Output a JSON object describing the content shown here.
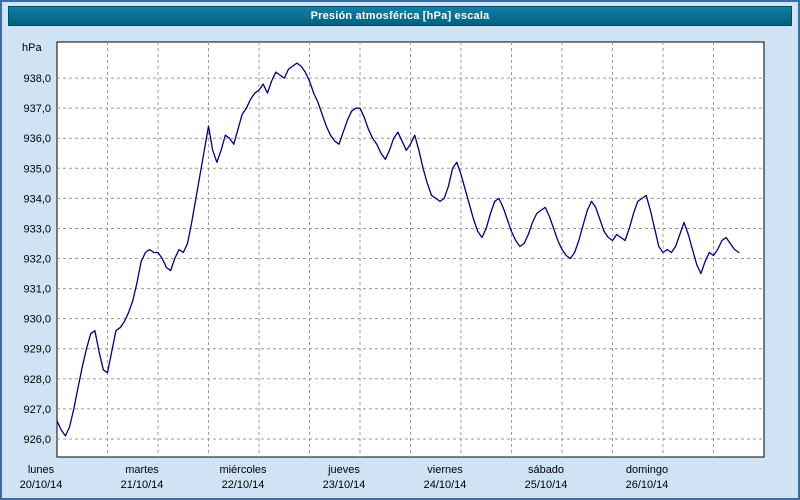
{
  "title": "Presión atmosférica [hPa] escala",
  "colors": {
    "window_bg": "#cfe3f5",
    "window_border": "#3a6ea5",
    "titlebar": "#0b6f93",
    "titlebar_text": "#ffffff",
    "plot_bg": "#ffffff",
    "plot_border": "#000000",
    "grid": "#9a9a9a",
    "line": "#000080",
    "text": "#000000"
  },
  "y_axis": {
    "unit_label": "hPa",
    "tick_labels": [
      "926,0",
      "927,0",
      "928,0",
      "929,0",
      "930,0",
      "931,0",
      "932,0",
      "933,0",
      "934,0",
      "935,0",
      "936,0",
      "937,0",
      "938,0"
    ]
  },
  "x_axis": {
    "days": [
      {
        "name": "lunes",
        "date": "20/10/14"
      },
      {
        "name": "martes",
        "date": "21/10/14"
      },
      {
        "name": "miércoles",
        "date": "22/10/14"
      },
      {
        "name": "jueves",
        "date": "23/10/14"
      },
      {
        "name": "viernes",
        "date": "24/10/14"
      },
      {
        "name": "sábado",
        "date": "25/10/14"
      },
      {
        "name": "domingo",
        "date": "26/10/14"
      }
    ]
  },
  "chart_data": {
    "type": "line",
    "title": "Presión atmosférica [hPa] escala",
    "xlabel": "",
    "ylabel": "hPa",
    "ylim": [
      925.4,
      939.2
    ],
    "y_ticks": [
      926,
      927,
      928,
      929,
      930,
      931,
      932,
      933,
      934,
      935,
      936,
      937,
      938
    ],
    "categories": [
      "lunes 20/10/14",
      "martes 21/10/14",
      "miércoles 22/10/14",
      "jueves 23/10/14",
      "viernes 24/10/14",
      "sábado 25/10/14",
      "domingo 26/10/14"
    ],
    "x_step_hours": 1,
    "grid": "dashed",
    "legend": "none",
    "line_color": "#000080",
    "values": [
      926.6,
      926.3,
      926.1,
      926.4,
      927.0,
      927.7,
      928.4,
      929.0,
      929.5,
      929.6,
      928.9,
      928.3,
      928.2,
      928.9,
      929.6,
      929.7,
      929.9,
      930.2,
      930.6,
      931.2,
      931.9,
      932.2,
      932.3,
      932.2,
      932.2,
      932.0,
      931.7,
      931.6,
      932.0,
      932.3,
      932.2,
      932.5,
      933.2,
      934.0,
      934.8,
      935.6,
      936.4,
      935.6,
      935.2,
      935.6,
      936.1,
      936.0,
      935.8,
      936.3,
      936.8,
      937.0,
      937.3,
      937.5,
      937.6,
      937.8,
      937.5,
      937.9,
      938.2,
      938.1,
      938.0,
      938.3,
      938.4,
      938.5,
      938.4,
      938.2,
      937.9,
      937.5,
      937.2,
      936.8,
      936.4,
      936.1,
      935.9,
      935.8,
      936.2,
      936.6,
      936.9,
      937.0,
      937.0,
      936.7,
      936.3,
      936.0,
      935.8,
      935.5,
      935.3,
      935.6,
      936.0,
      936.2,
      935.9,
      935.6,
      935.8,
      936.1,
      935.6,
      935.0,
      934.5,
      934.1,
      934.0,
      933.9,
      934.0,
      934.4,
      935.0,
      935.2,
      934.8,
      934.3,
      933.8,
      933.3,
      932.9,
      932.7,
      933.0,
      933.5,
      933.9,
      934.0,
      933.7,
      933.3,
      932.9,
      932.6,
      932.4,
      932.5,
      932.8,
      933.2,
      933.5,
      933.6,
      933.7,
      933.4,
      933.0,
      932.6,
      932.3,
      932.1,
      932.0,
      932.2,
      932.6,
      933.1,
      933.6,
      933.9,
      933.7,
      933.3,
      932.9,
      932.7,
      932.6,
      932.8,
      932.7,
      932.6,
      933.0,
      933.5,
      933.9,
      934.0,
      934.1,
      933.6,
      933.0,
      932.4,
      932.2,
      932.3,
      932.2,
      932.4,
      932.8,
      933.2,
      932.8,
      932.3,
      931.8,
      931.5,
      931.9,
      932.2,
      932.1,
      932.3,
      932.6,
      932.7,
      932.5,
      932.3,
      932.2
    ]
  }
}
